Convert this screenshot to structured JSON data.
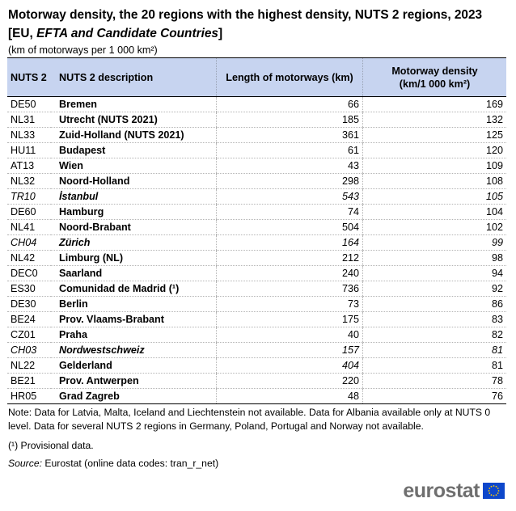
{
  "title": "Motorway density, the 20 regions with the highest density, NUTS 2 regions, 2023",
  "subtitle": {
    "open_bracket": "[",
    "plain": "EU, ",
    "italic": "EFTA and Candidate Countries",
    "close_bracket": "]"
  },
  "unit": "(km of motorways per 1 000 km²)",
  "table": {
    "headers": {
      "code": "NUTS 2",
      "desc": "NUTS 2 description",
      "length": "Length of motorways (km)",
      "density_line1": "Motorway density",
      "density_line2": "(km/1 000 km²)"
    },
    "rows": [
      {
        "code": "DE50",
        "desc": "Bremen",
        "length": "66",
        "density": "169",
        "italic": false
      },
      {
        "code": "NL31",
        "desc": "Utrecht (NUTS 2021)",
        "length": "185",
        "density": "132",
        "italic": false
      },
      {
        "code": "NL33",
        "desc": "Zuid-Holland (NUTS 2021)",
        "length": "361",
        "density": "125",
        "italic": false
      },
      {
        "code": "HU11",
        "desc": "Budapest",
        "length": "61",
        "density": "120",
        "italic": false
      },
      {
        "code": "AT13",
        "desc": "Wien",
        "length": "43",
        "density": "109",
        "italic": false
      },
      {
        "code": "NL32",
        "desc": "Noord-Holland",
        "length": "298",
        "density": "108",
        "italic": false
      },
      {
        "code": "TR10",
        "desc": "İstanbul",
        "length": "543",
        "density": "105",
        "italic": true
      },
      {
        "code": "DE60",
        "desc": "Hamburg",
        "length": "74",
        "density": "104",
        "italic": false
      },
      {
        "code": "NL41",
        "desc": "Noord-Brabant",
        "length": "504",
        "density": "102",
        "italic": false
      },
      {
        "code": "CH04",
        "desc": "Zürich",
        "length": "164",
        "density": "99",
        "italic": true
      },
      {
        "code": "NL42",
        "desc": "Limburg (NL)",
        "length": "212",
        "density": "98",
        "italic": false
      },
      {
        "code": "DEC0",
        "desc": "Saarland",
        "length": "240",
        "density": "94",
        "italic": false
      },
      {
        "code": "ES30",
        "desc": "Comunidad de Madrid (¹)",
        "length": "736",
        "density": "92",
        "italic": false
      },
      {
        "code": "DE30",
        "desc": "Berlin",
        "length": "73",
        "density": "86",
        "italic": false
      },
      {
        "code": "BE24",
        "desc": "Prov. Vlaams-Brabant",
        "length": "175",
        "density": "83",
        "italic": false
      },
      {
        "code": "CZ01",
        "desc": "Praha",
        "length": "40",
        "density": "82",
        "italic": false
      },
      {
        "code": "CH03",
        "desc": "Nordwestschweiz",
        "length": "157",
        "density": "81",
        "italic": true
      },
      {
        "code": "NL22",
        "desc": "Gelderland",
        "length": "404",
        "density": "81",
        "italic": false,
        "length_italic": true
      },
      {
        "code": "BE21",
        "desc": "Prov. Antwerpen",
        "length": "220",
        "density": "78",
        "italic": false
      },
      {
        "code": "HR05",
        "desc": "Grad Zagreb",
        "length": "48",
        "density": "76",
        "italic": false
      }
    ]
  },
  "notes": {
    "note": "Note: Data for Latvia, Malta, Iceland and Liechtenstein not available. Data for Albania available only at NUTS 0 level. Data for several NUTS 2 regions in Germany, Poland, Portugal and Norway not available.",
    "provisional": "(¹) Provisional data.",
    "source_label": "Source:",
    "source_text": " Eurostat (online data codes: tran_r_net)"
  },
  "logo": {
    "text": "eurostat",
    "flag_color": "#0e47cb",
    "star_color": "#ffcc00"
  }
}
